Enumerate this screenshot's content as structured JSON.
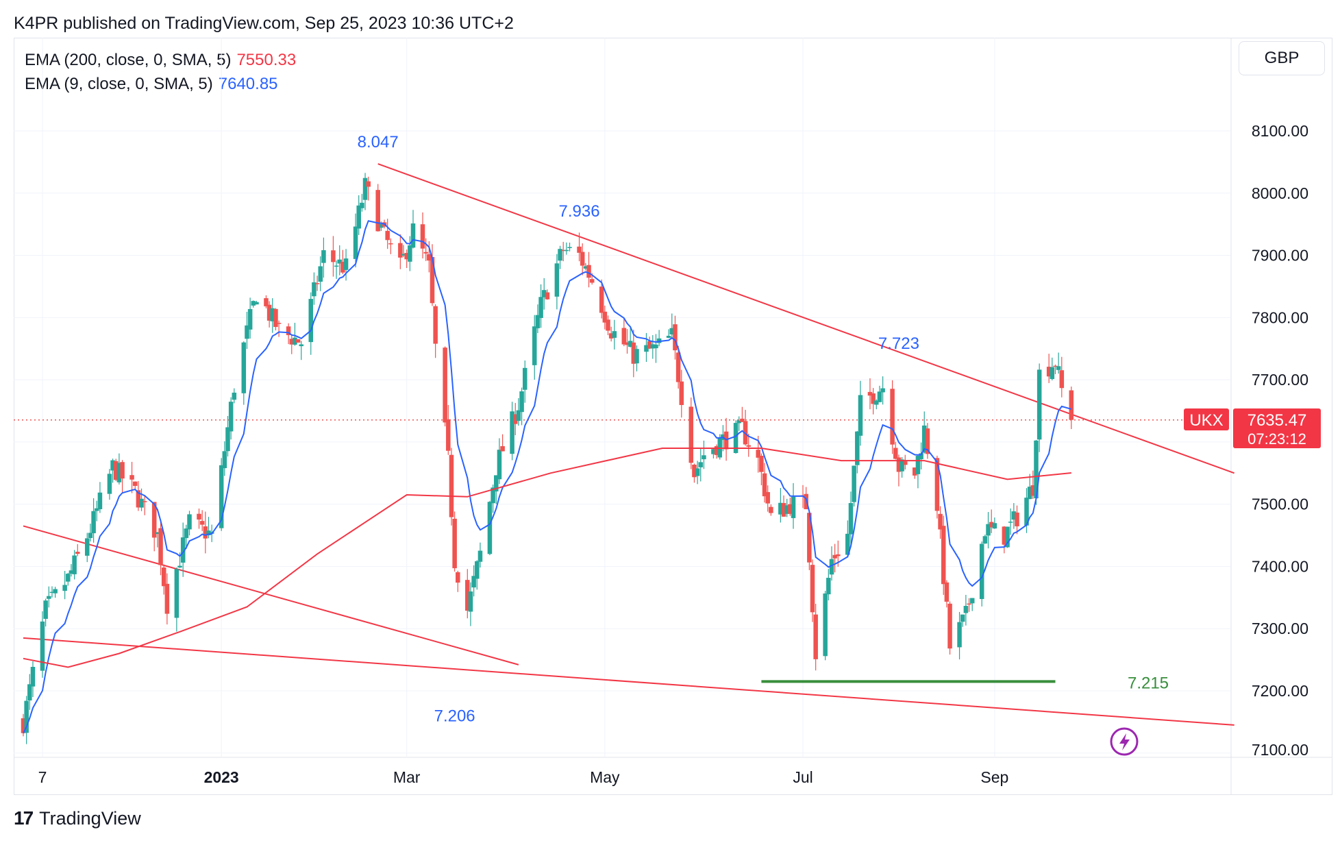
{
  "header": {
    "published_text": "K4PR published on TradingView.com, Sep 25, 2023 10:36 UTC+2"
  },
  "legend": {
    "ema200": {
      "label": "EMA (200, close, 0, SMA, 5)",
      "value": "7550.33",
      "color": "#f23645"
    },
    "ema9": {
      "label": "EMA (9, close, 0, SMA, 5)",
      "value": "7640.85",
      "color": "#2962ff"
    }
  },
  "currency_button": "GBP",
  "price_tag": {
    "symbol": "UKX",
    "price": "7635.47",
    "countdown": "07:23:12",
    "color": "#f23645"
  },
  "footer": {
    "logo_glyph": "17",
    "brand": "TradingView"
  },
  "colors": {
    "up": "#26a69a",
    "down": "#ef5350",
    "trend": "#f23645",
    "support": "#388e3c",
    "annotation": "#2962ff",
    "alert": "#9c27b0"
  },
  "chart_data": {
    "type": "candlestick",
    "symbol": "UKX",
    "currency": "GBP",
    "y_ticks": [
      "8100.00",
      "8000.00",
      "7900.00",
      "7800.00",
      "7700.00",
      "7600.00",
      "7500.00",
      "7400.00",
      "7300.00",
      "7200.00",
      "7100.00"
    ],
    "x_ticks": [
      {
        "label": "7",
        "date": "2022-11-07",
        "bold": false
      },
      {
        "label": "2023",
        "date": "2023-01-02",
        "bold": true
      },
      {
        "label": "Mar",
        "date": "2023-03-01",
        "bold": false
      },
      {
        "label": "May",
        "date": "2023-05-02",
        "bold": false
      },
      {
        "label": "Jul",
        "date": "2023-07-03",
        "bold": false
      },
      {
        "label": "Sep",
        "date": "2023-09-01",
        "bold": false
      }
    ],
    "ylim": [
      7090,
      8150
    ],
    "last_price": 7635.47,
    "anchors": [
      {
        "date": "2022-11-01",
        "close": 7150
      },
      {
        "date": "2022-11-08",
        "close": 7330
      },
      {
        "date": "2022-11-15",
        "close": 7380
      },
      {
        "date": "2022-11-22",
        "close": 7460
      },
      {
        "date": "2022-11-29",
        "close": 7560
      },
      {
        "date": "2022-12-06",
        "close": 7520
      },
      {
        "date": "2022-12-13",
        "close": 7450
      },
      {
        "date": "2022-12-16",
        "close": 7340
      },
      {
        "date": "2022-12-23",
        "close": 7470
      },
      {
        "date": "2022-12-30",
        "close": 7450
      },
      {
        "date": "2023-01-06",
        "close": 7690
      },
      {
        "date": "2023-01-13",
        "close": 7840
      },
      {
        "date": "2023-01-20",
        "close": 7780
      },
      {
        "date": "2023-01-27",
        "close": 7760
      },
      {
        "date": "2023-02-03",
        "close": 7900
      },
      {
        "date": "2023-02-10",
        "close": 7880
      },
      {
        "date": "2023-02-16",
        "close": 8010
      },
      {
        "date": "2023-02-22",
        "close": 7930
      },
      {
        "date": "2023-02-27",
        "close": 7880
      },
      {
        "date": "2023-03-03",
        "close": 7940
      },
      {
        "date": "2023-03-08",
        "close": 7880
      },
      {
        "date": "2023-03-10",
        "close": 7750
      },
      {
        "date": "2023-03-14",
        "close": 7570
      },
      {
        "date": "2023-03-16",
        "close": 7410
      },
      {
        "date": "2023-03-20",
        "close": 7330
      },
      {
        "date": "2023-03-24",
        "close": 7420
      },
      {
        "date": "2023-03-29",
        "close": 7560
      },
      {
        "date": "2023-04-05",
        "close": 7660
      },
      {
        "date": "2023-04-12",
        "close": 7820
      },
      {
        "date": "2023-04-19",
        "close": 7910
      },
      {
        "date": "2023-04-24",
        "close": 7900
      },
      {
        "date": "2023-04-28",
        "close": 7860
      },
      {
        "date": "2023-05-04",
        "close": 7780
      },
      {
        "date": "2023-05-11",
        "close": 7740
      },
      {
        "date": "2023-05-18",
        "close": 7750
      },
      {
        "date": "2023-05-23",
        "close": 7770
      },
      {
        "date": "2023-05-30",
        "close": 7550
      },
      {
        "date": "2023-06-02",
        "close": 7580
      },
      {
        "date": "2023-06-07",
        "close": 7600
      },
      {
        "date": "2023-06-14",
        "close": 7620
      },
      {
        "date": "2023-06-19",
        "close": 7570
      },
      {
        "date": "2023-06-23",
        "close": 7480
      },
      {
        "date": "2023-06-29",
        "close": 7500
      },
      {
        "date": "2023-07-04",
        "close": 7500
      },
      {
        "date": "2023-07-07",
        "close": 7260
      },
      {
        "date": "2023-07-12",
        "close": 7410
      },
      {
        "date": "2023-07-17",
        "close": 7450
      },
      {
        "date": "2023-07-21",
        "close": 7660
      },
      {
        "date": "2023-07-28",
        "close": 7690
      },
      {
        "date": "2023-08-02",
        "close": 7560
      },
      {
        "date": "2023-08-07",
        "close": 7550
      },
      {
        "date": "2023-08-10",
        "close": 7620
      },
      {
        "date": "2023-08-14",
        "close": 7500
      },
      {
        "date": "2023-08-18",
        "close": 7270
      },
      {
        "date": "2023-08-23",
        "close": 7320
      },
      {
        "date": "2023-08-29",
        "close": 7460
      },
      {
        "date": "2023-09-04",
        "close": 7450
      },
      {
        "date": "2023-09-08",
        "close": 7480
      },
      {
        "date": "2023-09-13",
        "close": 7530
      },
      {
        "date": "2023-09-15",
        "close": 7710
      },
      {
        "date": "2023-09-20",
        "close": 7730
      },
      {
        "date": "2023-09-22",
        "close": 7683
      },
      {
        "date": "2023-09-25",
        "close": 7635.47
      }
    ],
    "ema200_points": [
      {
        "date": "2022-11-01",
        "value": 7252
      },
      {
        "date": "2022-11-15",
        "value": 7238
      },
      {
        "date": "2022-12-01",
        "value": 7260
      },
      {
        "date": "2022-12-20",
        "value": 7295
      },
      {
        "date": "2023-01-10",
        "value": 7335
      },
      {
        "date": "2023-02-01",
        "value": 7420
      },
      {
        "date": "2023-03-01",
        "value": 7515
      },
      {
        "date": "2023-03-20",
        "value": 7512
      },
      {
        "date": "2023-04-15",
        "value": 7550
      },
      {
        "date": "2023-05-20",
        "value": 7590
      },
      {
        "date": "2023-06-20",
        "value": 7590
      },
      {
        "date": "2023-07-15",
        "value": 7570
      },
      {
        "date": "2023-08-10",
        "value": 7570
      },
      {
        "date": "2023-09-05",
        "value": 7540
      },
      {
        "date": "2023-09-25",
        "value": 7550.33
      }
    ],
    "trendlines": [
      {
        "name": "descending resistance",
        "from": {
          "date": "2023-02-20",
          "value": 8047
        },
        "to": {
          "date": "2023-11-15",
          "value": 7550
        }
      },
      {
        "name": "lower channel upper",
        "from": {
          "date": "2022-11-01",
          "value": 7465
        },
        "to": {
          "date": "2023-04-05",
          "value": 7242
        }
      },
      {
        "name": "lower channel lower",
        "from": {
          "date": "2022-11-01",
          "value": 7285
        },
        "to": {
          "date": "2023-11-15",
          "value": 7145
        }
      }
    ],
    "support": {
      "value": 7215,
      "label": "7.215",
      "from": "2023-06-20",
      "to": "2023-09-20"
    },
    "annotations": [
      {
        "text": "8.047",
        "date": "2023-02-20",
        "value": 8047
      },
      {
        "text": "7.936",
        "date": "2023-04-24",
        "value": 7936
      },
      {
        "text": "7.723",
        "date": "2023-08-02",
        "value": 7723
      },
      {
        "text": "7.206",
        "date": "2023-03-16",
        "value": 7206
      }
    ]
  }
}
